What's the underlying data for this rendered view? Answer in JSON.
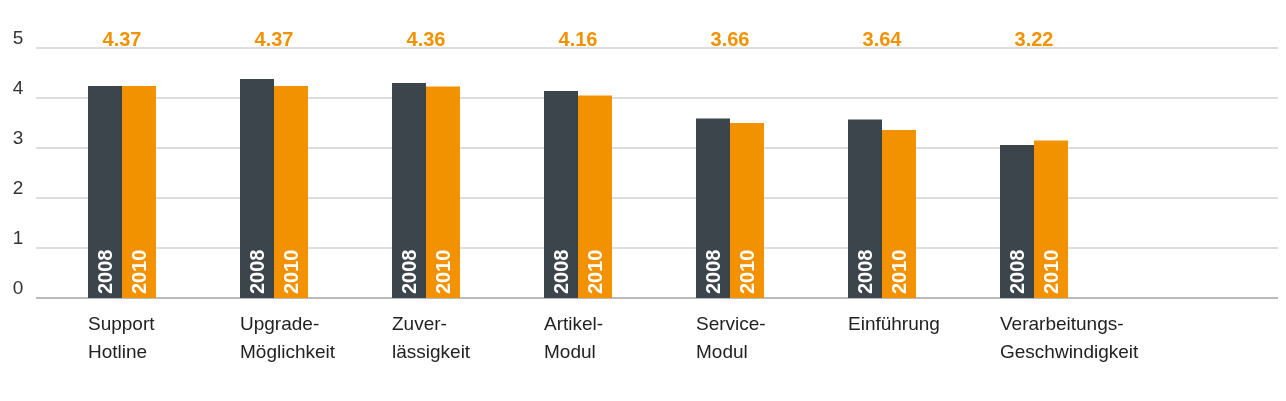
{
  "chart_data": {
    "type": "bar",
    "categories": [
      "Support\nHotline",
      "Upgrade-\nMöglichkeit",
      "Zuver-\nlässigkeit",
      "Artikel-\nModul",
      "Service-\nModul",
      "Einführung",
      "Verarbeitungs-\nGeschwindigkeit"
    ],
    "series": [
      {
        "name": "2008",
        "color": "#3c444c",
        "values": [
          4.24,
          4.38,
          4.3,
          4.14,
          3.59,
          3.57,
          3.06
        ]
      },
      {
        "name": "2010",
        "color": "#f39200",
        "values": [
          4.24,
          4.24,
          4.23,
          4.05,
          3.5,
          3.36,
          3.15
        ]
      }
    ],
    "annotations": [
      "4.37",
      "4.37",
      "4.36",
      "4.16",
      "3.66",
      "3.64",
      "3.22"
    ],
    "ylim": [
      0,
      5
    ],
    "yticks": [
      0,
      1,
      2,
      3,
      4,
      5
    ],
    "grid": "y",
    "legend": false
  }
}
